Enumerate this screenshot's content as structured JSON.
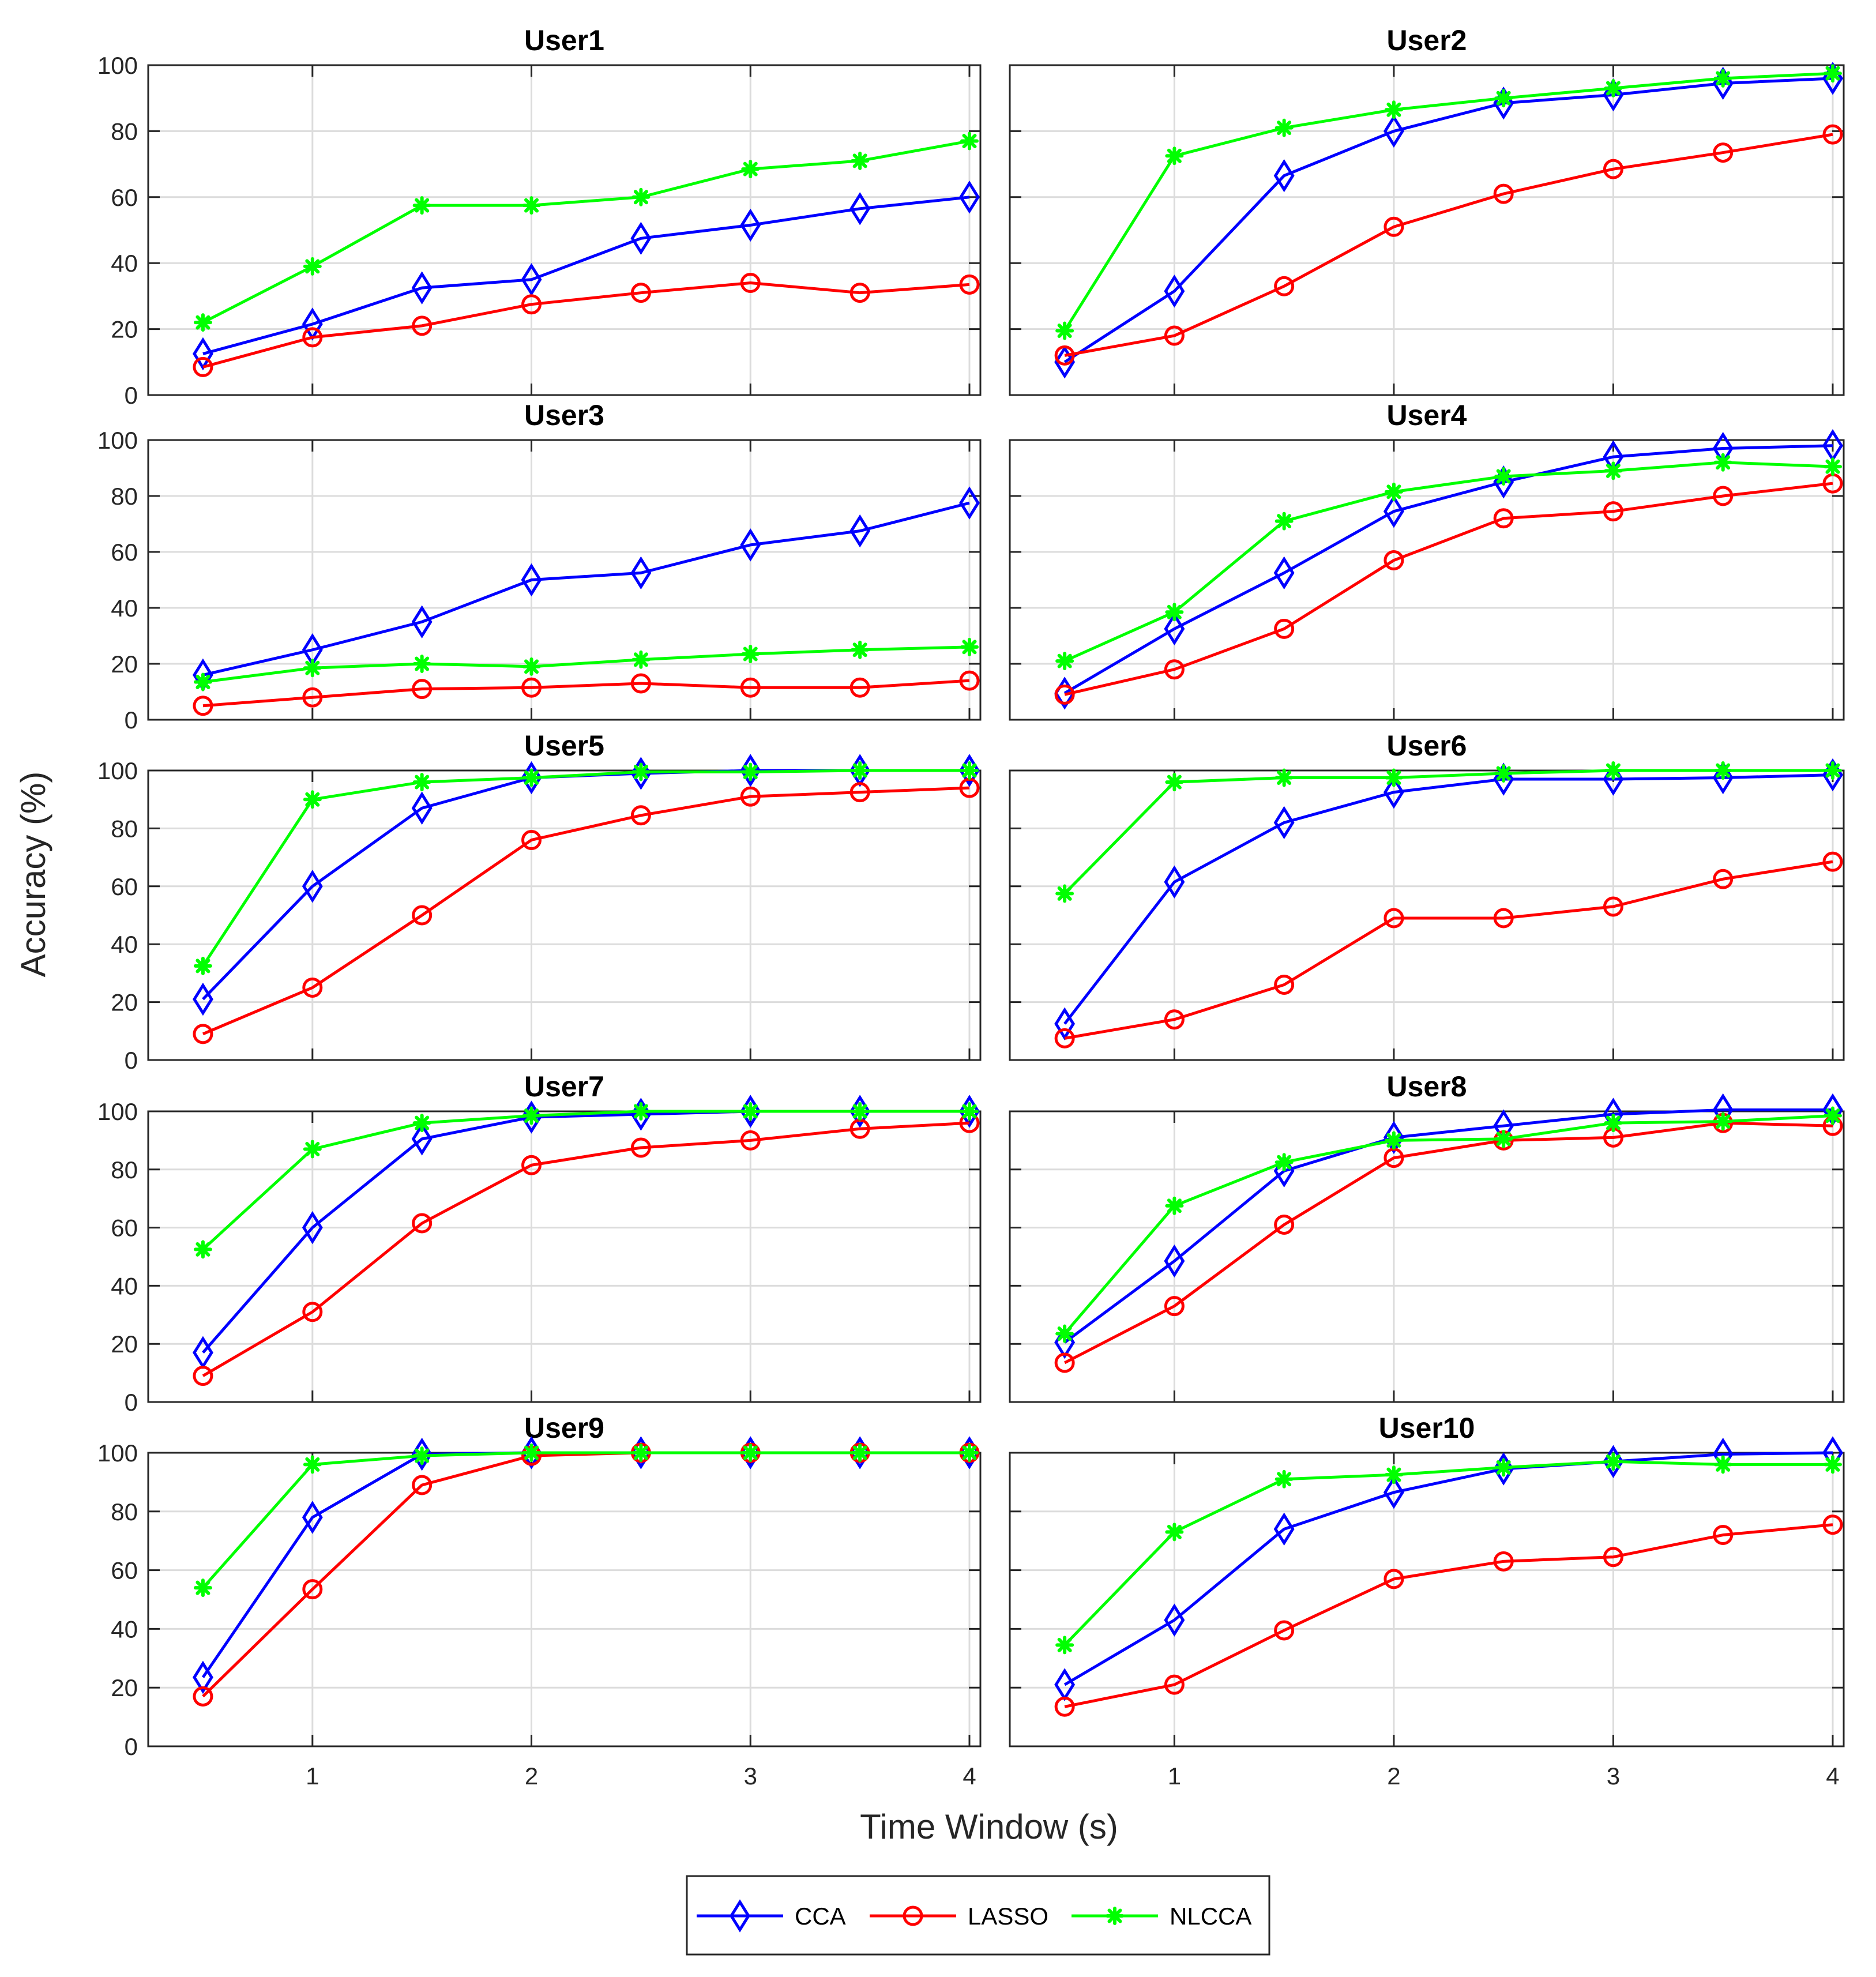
{
  "figure": {
    "xlabel": "Time Window (s)",
    "ylabel": "Accuracy (%)"
  },
  "legend": {
    "placement": "bottom-center",
    "entries": [
      {
        "name": "CCA",
        "color": "#0000ff",
        "marker": "diamond"
      },
      {
        "name": "LASSO",
        "color": "#ff0000",
        "marker": "circle"
      },
      {
        "name": "NLCCA",
        "color": "#00ff00",
        "marker": "asterisk"
      }
    ]
  },
  "chart_data": [
    {
      "type": "line",
      "title": "User1",
      "x": [
        0.5,
        1,
        1.5,
        2,
        2.5,
        3,
        3.5,
        4
      ],
      "xlim": [
        0.25,
        4.05
      ],
      "ylim": [
        0,
        100
      ],
      "xticks": [
        1,
        2,
        3,
        4
      ],
      "yticks": [
        0,
        20,
        40,
        60,
        80,
        100
      ],
      "grid": true,
      "series": [
        {
          "name": "CCA",
          "values": [
            12.5,
            21.5,
            32.5,
            35,
            47.5,
            51.5,
            56.5,
            60
          ]
        },
        {
          "name": "LASSO",
          "values": [
            8.5,
            17.5,
            21,
            27.5,
            31,
            34,
            31,
            33.5
          ]
        },
        {
          "name": "NLCCA",
          "values": [
            22,
            39,
            57.5,
            57.5,
            60,
            68.5,
            71,
            77
          ]
        }
      ]
    },
    {
      "type": "line",
      "title": "User2",
      "x": [
        0.5,
        1,
        1.5,
        2,
        2.5,
        3,
        3.5,
        4
      ],
      "xlim": [
        0.25,
        4.05
      ],
      "ylim": [
        0,
        100
      ],
      "xticks": [
        1,
        2,
        3,
        4
      ],
      "yticks": [
        0,
        20,
        40,
        60,
        80,
        100
      ],
      "grid": true,
      "series": [
        {
          "name": "CCA",
          "values": [
            10,
            31.5,
            66.5,
            80,
            88.5,
            91,
            94.5,
            96
          ]
        },
        {
          "name": "LASSO",
          "values": [
            12,
            18,
            33,
            51,
            61,
            68.5,
            73.5,
            79
          ]
        },
        {
          "name": "NLCCA",
          "values": [
            19.5,
            72.5,
            81,
            86.5,
            90,
            93,
            96,
            97.5
          ]
        }
      ]
    },
    {
      "type": "line",
      "title": "User3",
      "x": [
        0.5,
        1,
        1.5,
        2,
        2.5,
        3,
        3.5,
        4
      ],
      "xlim": [
        0.25,
        4.05
      ],
      "ylim": [
        0,
        100
      ],
      "xticks": [
        1,
        2,
        3,
        4
      ],
      "yticks": [
        0,
        20,
        40,
        60,
        80,
        100
      ],
      "grid": true,
      "series": [
        {
          "name": "CCA",
          "values": [
            16,
            25,
            35,
            50,
            52.5,
            62.5,
            67.5,
            77.5
          ]
        },
        {
          "name": "LASSO",
          "values": [
            5,
            8,
            11,
            11.5,
            13,
            11.5,
            11.5,
            14
          ]
        },
        {
          "name": "NLCCA",
          "values": [
            13.5,
            18.5,
            20,
            19,
            21.5,
            23.5,
            25,
            26
          ]
        }
      ]
    },
    {
      "type": "line",
      "title": "User4",
      "x": [
        0.5,
        1,
        1.5,
        2,
        2.5,
        3,
        3.5,
        4
      ],
      "xlim": [
        0.25,
        4.05
      ],
      "ylim": [
        0,
        100
      ],
      "xticks": [
        1,
        2,
        3,
        4
      ],
      "yticks": [
        0,
        20,
        40,
        60,
        80,
        100
      ],
      "grid": true,
      "series": [
        {
          "name": "CCA",
          "values": [
            9.5,
            32.5,
            52.5,
            74.5,
            85,
            94,
            97,
            98
          ]
        },
        {
          "name": "LASSO",
          "values": [
            9,
            18,
            32.5,
            57,
            72,
            74.5,
            80,
            84.5
          ]
        },
        {
          "name": "NLCCA",
          "values": [
            21,
            38.5,
            71,
            81.5,
            87,
            89,
            92,
            90.5
          ]
        }
      ]
    },
    {
      "type": "line",
      "title": "User5",
      "x": [
        0.5,
        1,
        1.5,
        2,
        2.5,
        3,
        3.5,
        4
      ],
      "xlim": [
        0.25,
        4.05
      ],
      "ylim": [
        0,
        100
      ],
      "xticks": [
        1,
        2,
        3,
        4
      ],
      "yticks": [
        0,
        20,
        40,
        60,
        80,
        100
      ],
      "grid": true,
      "series": [
        {
          "name": "CCA",
          "values": [
            21,
            60,
            87,
            97.5,
            99,
            100,
            100,
            100
          ]
        },
        {
          "name": "LASSO",
          "values": [
            9,
            25,
            50,
            76,
            84.5,
            91,
            92.5,
            94
          ]
        },
        {
          "name": "NLCCA",
          "values": [
            32.5,
            90,
            96,
            97.5,
            99.5,
            99.5,
            100,
            100
          ]
        }
      ]
    },
    {
      "type": "line",
      "title": "User6",
      "x": [
        0.5,
        1,
        1.5,
        2,
        2.5,
        3,
        3.5,
        4
      ],
      "xlim": [
        0.25,
        4.05
      ],
      "ylim": [
        0,
        100
      ],
      "xticks": [
        1,
        2,
        3,
        4
      ],
      "yticks": [
        0,
        20,
        40,
        60,
        80,
        100
      ],
      "grid": true,
      "series": [
        {
          "name": "CCA",
          "values": [
            12.5,
            61.5,
            82,
            92.5,
            97,
            97,
            97.5,
            98.5
          ]
        },
        {
          "name": "LASSO",
          "values": [
            7.5,
            14,
            26,
            49,
            49,
            53,
            62.5,
            68.5
          ]
        },
        {
          "name": "NLCCA",
          "values": [
            57.5,
            96,
            97.5,
            97.5,
            99,
            100,
            100,
            100
          ]
        }
      ]
    },
    {
      "type": "line",
      "title": "User7",
      "x": [
        0.5,
        1,
        1.5,
        2,
        2.5,
        3,
        3.5,
        4
      ],
      "xlim": [
        0.25,
        4.05
      ],
      "ylim": [
        0,
        100
      ],
      "xticks": [
        1,
        2,
        3,
        4
      ],
      "yticks": [
        0,
        20,
        40,
        60,
        80,
        100
      ],
      "grid": true,
      "series": [
        {
          "name": "CCA",
          "values": [
            17,
            60,
            90.5,
            98,
            99,
            100,
            100,
            100
          ]
        },
        {
          "name": "LASSO",
          "values": [
            9,
            31,
            61.5,
            81.5,
            87.5,
            90,
            94,
            96
          ]
        },
        {
          "name": "NLCCA",
          "values": [
            52.5,
            87,
            96,
            98.5,
            100,
            100,
            100,
            100
          ]
        }
      ]
    },
    {
      "type": "line",
      "title": "User8",
      "x": [
        0.5,
        1,
        1.5,
        2,
        2.5,
        3,
        3.5,
        4
      ],
      "xlim": [
        0.25,
        4.05
      ],
      "ylim": [
        0,
        100
      ],
      "xticks": [
        1,
        2,
        3,
        4
      ],
      "yticks": [
        0,
        20,
        40,
        60,
        80,
        100
      ],
      "grid": true,
      "series": [
        {
          "name": "CCA",
          "values": [
            20.5,
            48.5,
            79.5,
            91,
            95,
            99,
            100.5,
            100.5
          ]
        },
        {
          "name": "LASSO",
          "values": [
            13.5,
            33,
            61,
            84,
            90,
            91,
            96,
            95
          ]
        },
        {
          "name": "NLCCA",
          "values": [
            23.5,
            67.5,
            82.5,
            90,
            90.5,
            96,
            96.5,
            98.5
          ]
        }
      ]
    },
    {
      "type": "line",
      "title": "User9",
      "x": [
        0.5,
        1,
        1.5,
        2,
        2.5,
        3,
        3.5,
        4
      ],
      "xlim": [
        0.25,
        4.05
      ],
      "ylim": [
        0,
        100
      ],
      "xticks": [
        1,
        2,
        3,
        4
      ],
      "yticks": [
        0,
        20,
        40,
        60,
        80,
        100
      ],
      "grid": true,
      "series": [
        {
          "name": "CCA",
          "values": [
            23.5,
            78,
            99.5,
            100,
            100,
            100,
            100,
            100
          ]
        },
        {
          "name": "LASSO",
          "values": [
            17,
            53.5,
            89,
            99,
            100,
            100,
            100,
            100
          ]
        },
        {
          "name": "NLCCA",
          "values": [
            54,
            96,
            99,
            100,
            100,
            100,
            100,
            100
          ]
        }
      ]
    },
    {
      "type": "line",
      "title": "User10",
      "x": [
        0.5,
        1,
        1.5,
        2,
        2.5,
        3,
        3.5,
        4
      ],
      "xlim": [
        0.25,
        4.05
      ],
      "ylim": [
        0,
        100
      ],
      "xticks": [
        1,
        2,
        3,
        4
      ],
      "yticks": [
        0,
        20,
        40,
        60,
        80,
        100
      ],
      "grid": true,
      "series": [
        {
          "name": "CCA",
          "values": [
            21,
            43,
            74,
            86.5,
            94.5,
            97,
            99.5,
            100
          ]
        },
        {
          "name": "LASSO",
          "values": [
            13.5,
            21,
            39.5,
            57,
            63,
            64.5,
            72,
            75.5
          ]
        },
        {
          "name": "NLCCA",
          "values": [
            34.5,
            73,
            91,
            92.5,
            95,
            97,
            96,
            96
          ]
        }
      ]
    }
  ]
}
